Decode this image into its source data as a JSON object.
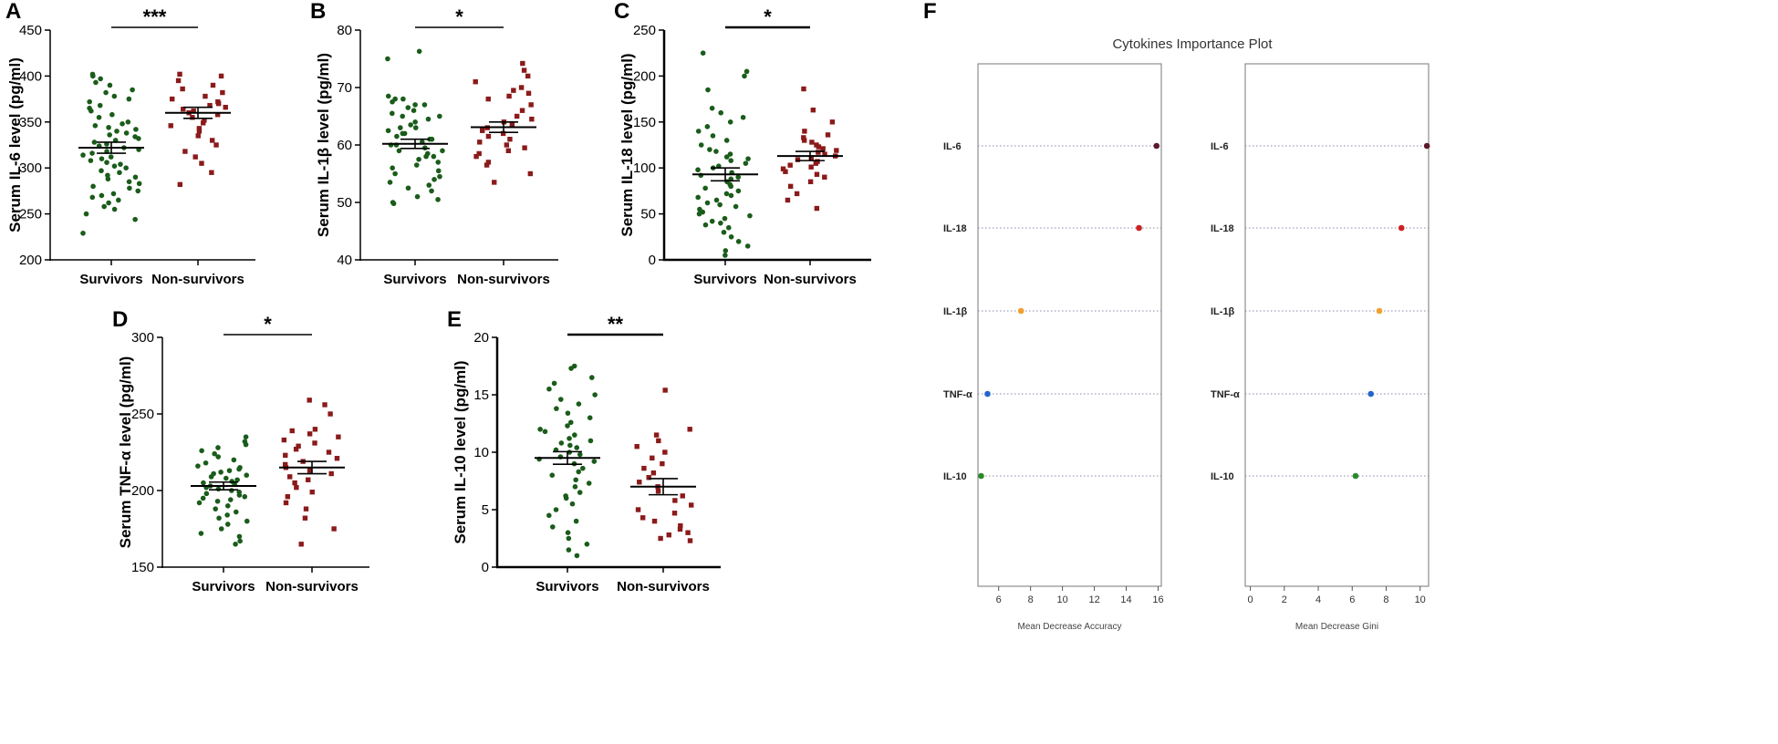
{
  "chart_data": [
    {
      "panel": "A",
      "type": "scatter",
      "ylabel": "Serum IL-6 level (pg/ml)",
      "ylim": [
        200,
        450
      ],
      "yticks": [
        200,
        250,
        300,
        350,
        400,
        450
      ],
      "categories": [
        "Survivors",
        "Non-survivors"
      ],
      "significance": "***",
      "series": [
        {
          "name": "Survivors",
          "mean": 322,
          "sem": 6,
          "color": "#1a5c1a",
          "marker": "circle",
          "values": [
            229,
            244,
            250,
            255,
            258,
            262,
            265,
            268,
            270,
            272,
            275,
            278,
            280,
            283,
            285,
            288,
            290,
            292,
            295,
            297,
            300,
            302,
            304,
            306,
            308,
            310,
            312,
            314,
            316,
            318,
            320,
            322,
            324,
            326,
            328,
            330,
            332,
            334,
            336,
            338,
            340,
            342,
            344,
            346,
            348,
            350,
            355,
            358,
            362,
            365,
            368,
            372,
            375,
            378,
            382,
            385,
            390,
            393,
            397,
            400,
            402
          ]
        },
        {
          "name": "Non-survivors",
          "mean": 360,
          "sem": 6,
          "color": "#8b1a1a",
          "marker": "square",
          "values": [
            282,
            295,
            305,
            312,
            318,
            325,
            330,
            335,
            340,
            343,
            346,
            349,
            352,
            355,
            358,
            360,
            362,
            364,
            366,
            368,
            370,
            372,
            375,
            378,
            382,
            386,
            390,
            395,
            400,
            402
          ]
        }
      ]
    },
    {
      "panel": "B",
      "type": "scatter",
      "ylabel": "Serum IL-1β level (pg/ml)",
      "ylim": [
        40,
        80
      ],
      "yticks": [
        40,
        50,
        60,
        70,
        80
      ],
      "categories": [
        "Survivors",
        "Non-survivors"
      ],
      "significance": "*",
      "series": [
        {
          "name": "Survivors",
          "mean": 60.2,
          "sem": 0.8,
          "color": "#1a5c1a",
          "marker": "circle",
          "values": [
            49.8,
            50,
            50.5,
            51,
            52,
            52.5,
            53,
            53.5,
            54,
            54.5,
            55,
            55.5,
            56,
            56.5,
            57,
            57.5,
            58,
            58,
            58.5,
            59,
            59,
            59.5,
            60,
            60,
            60.5,
            61,
            61,
            61.5,
            62,
            62,
            62.5,
            63,
            63,
            63.5,
            64,
            64.5,
            65,
            65,
            65.5,
            66,
            66.5,
            67,
            67,
            67.5,
            68,
            68,
            68.5,
            75,
            76.3
          ]
        },
        {
          "name": "Non-survivors",
          "mean": 63.1,
          "sem": 0.9,
          "color": "#8b1a1a",
          "marker": "square",
          "values": [
            53.5,
            55,
            56.5,
            57,
            58,
            58.5,
            59,
            59.5,
            60,
            60.5,
            61,
            61.5,
            62,
            62.5,
            63,
            63.5,
            64,
            64.5,
            65,
            66,
            67,
            68,
            68.5,
            69,
            69.5,
            70,
            71,
            72,
            73,
            74.2
          ]
        }
      ]
    },
    {
      "panel": "C",
      "type": "scatter",
      "ylabel": "Serum IL-18 level (pg/ml)",
      "ylim": [
        0,
        250
      ],
      "yticks": [
        0,
        50,
        100,
        150,
        200,
        250
      ],
      "categories": [
        "Survivors",
        "Non-survivors"
      ],
      "significance": "*",
      "series": [
        {
          "name": "Survivors",
          "mean": 93,
          "sem": 7,
          "color": "#1a5c1a",
          "marker": "circle",
          "values": [
            5,
            10,
            15,
            20,
            25,
            30,
            35,
            38,
            40,
            42,
            45,
            48,
            50,
            52,
            55,
            58,
            60,
            62,
            65,
            68,
            70,
            72,
            75,
            78,
            80,
            82,
            85,
            88,
            90,
            92,
            95,
            98,
            100,
            102,
            105,
            108,
            110,
            112,
            115,
            118,
            120,
            125,
            130,
            135,
            140,
            145,
            150,
            155,
            160,
            165,
            185,
            200,
            205,
            225
          ]
        },
        {
          "name": "Non-survivors",
          "mean": 113,
          "sem": 5,
          "color": "#8b1a1a",
          "marker": "square",
          "values": [
            56,
            65,
            72,
            80,
            85,
            90,
            93,
            96,
            99,
            101,
            103,
            105,
            107,
            109,
            111,
            113,
            115,
            117,
            119,
            121,
            123,
            125,
            128,
            130,
            133,
            136,
            140,
            150,
            163,
            186
          ]
        }
      ]
    },
    {
      "panel": "D",
      "type": "scatter",
      "ylabel": "Serum TNF-α level (pg/ml)",
      "ylim": [
        150,
        300
      ],
      "yticks": [
        150,
        200,
        250,
        300
      ],
      "categories": [
        "Survivors",
        "Non-survivors"
      ],
      "significance": "*",
      "series": [
        {
          "name": "Survivors",
          "mean": 203,
          "sem": 2.5,
          "color": "#1a5c1a",
          "marker": "circle",
          "values": [
            165,
            167,
            170,
            172,
            175,
            178,
            180,
            182,
            184,
            186,
            188,
            190,
            192,
            193,
            194,
            195,
            196,
            197,
            198,
            199,
            200,
            201,
            202,
            203,
            204,
            205,
            206,
            207,
            208,
            209,
            210,
            211,
            212,
            213,
            214,
            215,
            216,
            218,
            220,
            222,
            224,
            226,
            228,
            230,
            232,
            235
          ]
        },
        {
          "name": "Non-survivors",
          "mean": 215,
          "sem": 4,
          "color": "#8b1a1a",
          "marker": "square",
          "values": [
            165,
            175,
            182,
            188,
            192,
            196,
            199,
            202,
            205,
            207,
            209,
            211,
            213,
            215,
            217,
            219,
            221,
            223,
            225,
            227,
            229,
            231,
            233,
            235,
            237,
            239,
            240,
            250,
            256,
            259
          ]
        }
      ]
    },
    {
      "panel": "E",
      "type": "scatter",
      "ylabel": "Serum IL-10 level (pg/ml)",
      "ylim": [
        0,
        20
      ],
      "yticks": [
        0,
        5,
        10,
        15,
        20
      ],
      "categories": [
        "Survivors",
        "Non-survivors"
      ],
      "significance": "**",
      "series": [
        {
          "name": "Survivors",
          "mean": 9.5,
          "sem": 0.55,
          "color": "#1a5c1a",
          "marker": "circle",
          "values": [
            1,
            1.5,
            2,
            2.5,
            3,
            3.5,
            4,
            4.5,
            5,
            5.5,
            6,
            6.2,
            6.5,
            7,
            7.3,
            7.6,
            8,
            8.3,
            8.6,
            9,
            9.2,
            9.4,
            9.6,
            9.8,
            10,
            10.2,
            10.4,
            10.6,
            10.8,
            11,
            11.2,
            11.5,
            11.8,
            12,
            12.3,
            12.6,
            13,
            13.4,
            13.8,
            14.2,
            14.6,
            15,
            15.5,
            16,
            16.5,
            17.3,
            17.5
          ]
        },
        {
          "name": "Non-survivors",
          "mean": 7.0,
          "sem": 0.7,
          "color": "#8b1a1a",
          "marker": "square",
          "values": [
            2.3,
            2.5,
            2.8,
            3,
            3.3,
            3.6,
            4,
            4.3,
            4.7,
            5,
            5.4,
            5.8,
            6.2,
            6.6,
            7,
            7.4,
            7.8,
            8.2,
            8.6,
            9,
            9.5,
            10,
            10.5,
            11,
            11.5,
            12,
            15.4
          ]
        }
      ]
    },
    {
      "panel": "F",
      "type": "scatter",
      "title": "Cytokines Importance Plot",
      "categories": [
        "IL-6",
        "IL-18",
        "IL-1β",
        "TNF-α",
        "IL-10"
      ],
      "colors": [
        "#5a1a2a",
        "#cc2222",
        "#f0a030",
        "#2266cc",
        "#2a8a2a"
      ],
      "subplots": [
        {
          "xlabel": "Mean Decrease Accuracy",
          "xlim": [
            4.7,
            16.2
          ],
          "xticks": [
            6,
            8,
            10,
            12,
            14,
            16
          ],
          "values": [
            15.9,
            14.8,
            7.4,
            5.3,
            4.9
          ]
        },
        {
          "xlabel": "Mean Decrease Gini",
          "xlim": [
            -0.3,
            10.5
          ],
          "xticks": [
            0,
            2,
            4,
            6,
            8,
            10
          ],
          "values": [
            10.4,
            8.9,
            7.6,
            7.1,
            6.2
          ]
        }
      ]
    }
  ]
}
